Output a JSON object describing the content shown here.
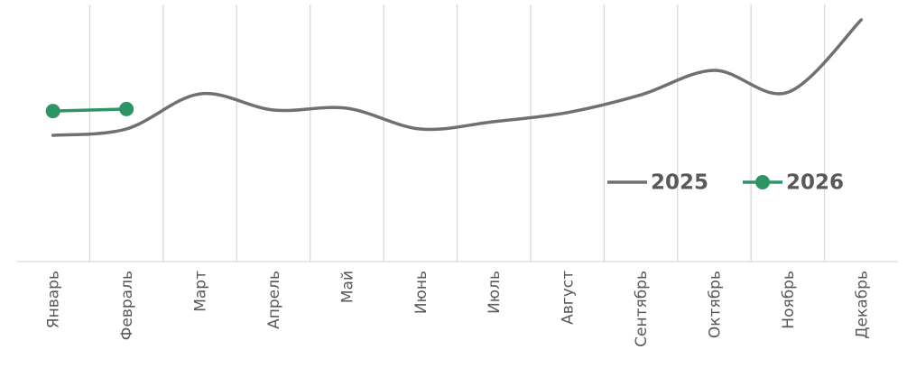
{
  "chart_data": {
    "type": "line",
    "categories": [
      "Январь",
      "Февраль",
      "Март",
      "Апрель",
      "Май",
      "Июнь",
      "Июль",
      "Август",
      "Сентябрь",
      "Октябрь",
      "Ноябрь",
      "Декабрь"
    ],
    "series": [
      {
        "name": "2025",
        "color": "#717071",
        "smooth": true,
        "marker": false,
        "values": [
          50,
          52.5,
          66.4,
          60,
          60.7,
          52.5,
          55.4,
          59,
          66,
          75.7,
          67,
          95.7
        ]
      },
      {
        "name": "2026",
        "color": "#2e9465",
        "smooth": false,
        "marker": true,
        "values": [
          59.6,
          60.4,
          null,
          null,
          null,
          null,
          null,
          null,
          null,
          null,
          null,
          null
        ]
      }
    ],
    "ylim": [
      0,
      100
    ],
    "grid": true,
    "legend": "right"
  }
}
